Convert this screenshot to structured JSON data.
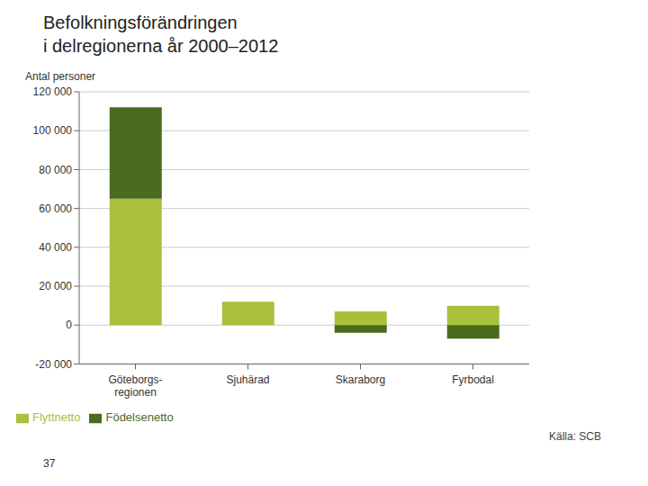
{
  "chart_data": {
    "type": "bar",
    "title": "Befolkningsförändringen\ni delregionerna år 2000–2012",
    "y_label": "Antal personer",
    "categories": [
      "Göteborgs-\nregionen",
      "Sjuhärad",
      "Skaraborg",
      "Fyrbodal"
    ],
    "series": [
      {
        "name": "Flyttnetto",
        "color": "#a8c03a",
        "values": [
          65000,
          12000,
          7000,
          10000
        ]
      },
      {
        "name": "Födelsenetto",
        "color": "#4a6b1e",
        "values": [
          47000,
          0,
          -4000,
          -7000
        ]
      }
    ],
    "stacked": true,
    "ylim": [
      -20000,
      120000
    ],
    "yticks": [
      {
        "value": -20000,
        "label": "-20 000"
      },
      0,
      {
        "value": 20000,
        "label": "20 000"
      },
      {
        "value": 40000,
        "label": "40 000"
      },
      {
        "value": 60000,
        "label": "60 000"
      },
      {
        "value": 80000,
        "label": "80 000"
      },
      {
        "value": 100000,
        "label": "100 000"
      },
      {
        "value": 120000,
        "label": "120 000"
      }
    ],
    "grid": true,
    "legend": "bottom",
    "annotations": [
      "Källa: SCB",
      "37"
    ]
  }
}
